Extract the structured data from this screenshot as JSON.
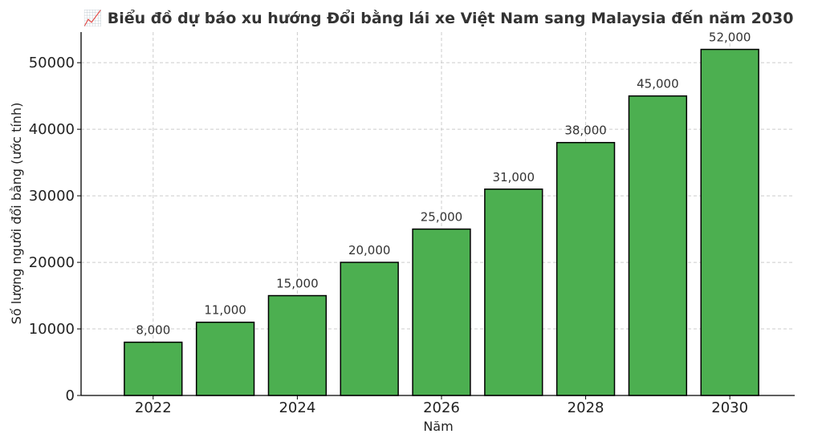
{
  "chart_data": {
    "type": "bar",
    "title": "📈 Biểu đồ dự báo xu hướng Đổi bằng lái xe Việt Nam sang Malaysia đến năm 2030",
    "xlabel": "Năm",
    "ylabel": "Số lượng người đổi bằng (ước tính)",
    "categories": [
      2022,
      2023,
      2024,
      2025,
      2026,
      2027,
      2028,
      2029,
      2030
    ],
    "values": [
      8000,
      11000,
      15000,
      20000,
      25000,
      31000,
      38000,
      45000,
      52000
    ],
    "data_labels": [
      "8,000",
      "11,000",
      "15,000",
      "20,000",
      "25,000",
      "31,000",
      "38,000",
      "45,000",
      "52,000"
    ],
    "x_ticks": [
      2022,
      2024,
      2026,
      2028,
      2030
    ],
    "x_tick_labels": [
      "2022",
      "2024",
      "2026",
      "2028",
      "2030"
    ],
    "y_ticks": [
      0,
      10000,
      20000,
      30000,
      40000,
      50000
    ],
    "y_tick_labels": [
      "0",
      "10000",
      "20000",
      "30000",
      "40000",
      "50000"
    ],
    "xlim": [
      2021.0,
      2030.9
    ],
    "ylim": [
      0,
      54600
    ],
    "bar_color": "#4caf50",
    "bar_edge_color": "#000000",
    "grid": true
  }
}
